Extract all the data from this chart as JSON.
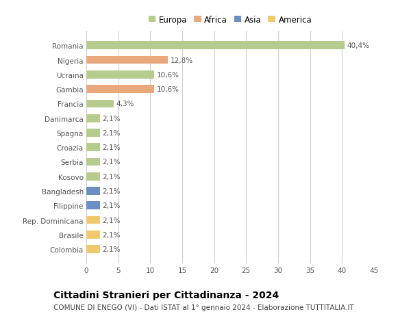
{
  "countries": [
    "Romania",
    "Nigeria",
    "Ucraina",
    "Gambia",
    "Francia",
    "Danimarca",
    "Spagna",
    "Croazia",
    "Serbia",
    "Kosovo",
    "Bangladesh",
    "Filippine",
    "Rep. Dominicana",
    "Brasile",
    "Colombia"
  ],
  "values": [
    40.4,
    12.8,
    10.6,
    10.6,
    4.3,
    2.1,
    2.1,
    2.1,
    2.1,
    2.1,
    2.1,
    2.1,
    2.1,
    2.1,
    2.1
  ],
  "labels": [
    "40,4%",
    "12,8%",
    "10,6%",
    "10,6%",
    "4,3%",
    "2,1%",
    "2,1%",
    "2,1%",
    "2,1%",
    "2,1%",
    "2,1%",
    "2,1%",
    "2,1%",
    "2,1%",
    "2,1%"
  ],
  "continents": [
    "Europa",
    "Africa",
    "Europa",
    "Africa",
    "Europa",
    "Europa",
    "Europa",
    "Europa",
    "Europa",
    "Europa",
    "Asia",
    "Asia",
    "America",
    "America",
    "America"
  ],
  "colors": {
    "Europa": "#b5cc8e",
    "Africa": "#e8a87c",
    "Asia": "#6b8fc2",
    "America": "#f0c96e"
  },
  "legend_order": [
    "Europa",
    "Africa",
    "Asia",
    "America"
  ],
  "legend_colors": [
    "#b5cc8e",
    "#e8a87c",
    "#6b8fc2",
    "#f0c96e"
  ],
  "xlim": [
    0,
    45
  ],
  "xticks": [
    0,
    5,
    10,
    15,
    20,
    25,
    30,
    35,
    40,
    45
  ],
  "title": "Cittadini Stranieri per Cittadinanza - 2024",
  "subtitle": "COMUNE DI ENEGO (VI) - Dati ISTAT al 1° gennaio 2024 - Elaborazione TUTTITALIA.IT",
  "background_color": "#ffffff",
  "grid_color": "#d0d0d0",
  "bar_height": 0.55,
  "label_fontsize": 7.5,
  "tick_fontsize": 7.5,
  "title_fontsize": 10,
  "subtitle_fontsize": 7.5
}
